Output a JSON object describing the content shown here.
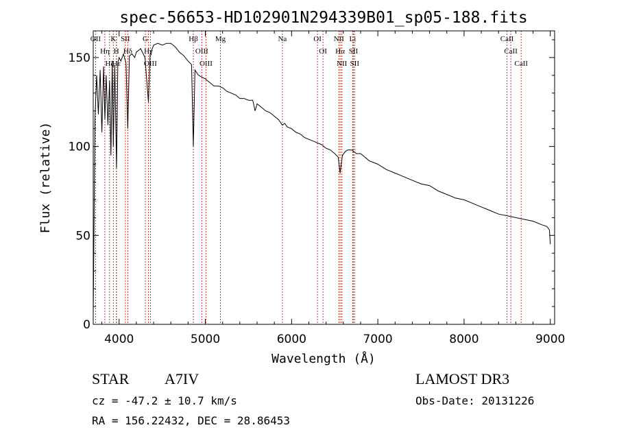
{
  "chart_data": {
    "type": "line",
    "title": "spec-56653-HD102901N294339B01_sp05-188.fits",
    "xlabel": "Wavelength (Å)",
    "ylabel": "Flux (relative)",
    "xlim": [
      3700,
      9050
    ],
    "ylim": [
      0,
      165
    ],
    "xticks": [
      4000,
      5000,
      6000,
      7000,
      8000,
      9000
    ],
    "xtick_labels": [
      "4000",
      "5000",
      "6000",
      "7000",
      "8000",
      "9000"
    ],
    "yticks": [
      0,
      50,
      100,
      150
    ],
    "ytick_labels": [
      "0",
      "50",
      "100",
      "150"
    ],
    "series": [
      {
        "name": "spectrum",
        "x": [
          3700,
          3720,
          3740,
          3760,
          3780,
          3800,
          3820,
          3835,
          3850,
          3870,
          3889,
          3905,
          3920,
          3933,
          3950,
          3970,
          3985,
          4000,
          4020,
          4050,
          4080,
          4101,
          4120,
          4150,
          4180,
          4200,
          4250,
          4300,
          4340,
          4360,
          4400,
          4450,
          4500,
          4550,
          4600,
          4650,
          4700,
          4750,
          4800,
          4840,
          4861,
          4880,
          4920,
          4960,
          5000,
          5050,
          5100,
          5150,
          5200,
          5250,
          5300,
          5350,
          5400,
          5450,
          5500,
          5550,
          5577,
          5600,
          5650,
          5700,
          5750,
          5800,
          5850,
          5893,
          5920,
          5950,
          6000,
          6050,
          6100,
          6150,
          6200,
          6250,
          6300,
          6350,
          6400,
          6450,
          6500,
          6540,
          6563,
          6590,
          6620,
          6650,
          6700,
          6750,
          6800,
          6850,
          6900,
          6950,
          7000,
          7100,
          7200,
          7300,
          7400,
          7500,
          7600,
          7700,
          7800,
          7900,
          8000,
          8100,
          8200,
          8300,
          8400,
          8500,
          8600,
          8700,
          8800,
          8900,
          8960,
          8990,
          9000
        ],
        "y": [
          5,
          115,
          140,
          118,
          143,
          108,
          145,
          115,
          140,
          112,
          137,
          95,
          148,
          100,
          146,
          88,
          147,
          150,
          148,
          152,
          147,
          110,
          151,
          152,
          150,
          153,
          155,
          150,
          125,
          152,
          157,
          158,
          157,
          158,
          158,
          156,
          153,
          151,
          148,
          146,
          100,
          143,
          140,
          139,
          138,
          136,
          134,
          134,
          133,
          131,
          130,
          129,
          127,
          127,
          126,
          126,
          120,
          124,
          122,
          120,
          119,
          117,
          115,
          112,
          113,
          111,
          110,
          108,
          107,
          105,
          104,
          103,
          102,
          101,
          99,
          98,
          96,
          94,
          85,
          95,
          97,
          98,
          98,
          96,
          96,
          94,
          92,
          91,
          90,
          87,
          85,
          83,
          81,
          79,
          78,
          75,
          73,
          71,
          70,
          68,
          66,
          64,
          62,
          61,
          60,
          59,
          58,
          56,
          55,
          53,
          45
        ]
      }
    ],
    "lines": [
      {
        "label": "Hε",
        "x": 3970
      },
      {
        "label": "K",
        "x": 3933
      },
      {
        "label": "Hδ",
        "x": 4101
      },
      {
        "label": "OII",
        "x": 3727
      },
      {
        "label": "Hη",
        "x": 3835
      },
      {
        "label": "Hζ",
        "x": 3889
      },
      {
        "label": "SII",
        "x": 4072
      },
      {
        "label": "H",
        "x": 3968
      },
      {
        "label": "G",
        "x": 4304
      },
      {
        "label": "Hγ",
        "x": 4340
      },
      {
        "label": "OIII",
        "x": 4363
      },
      {
        "label": "Hβ",
        "x": 4861
      },
      {
        "label": "OIII",
        "x": 4959
      },
      {
        "label": "OIII",
        "x": 5007
      },
      {
        "label": "Mg",
        "x": 5175
      },
      {
        "label": "Na",
        "x": 5893
      },
      {
        "label": "OI",
        "x": 6300
      },
      {
        "label": "OI",
        "x": 6364
      },
      {
        "label": "NII",
        "x": 6548
      },
      {
        "label": "Hα",
        "x": 6563
      },
      {
        "label": "NII",
        "x": 6583
      },
      {
        "label": "Li",
        "x": 6708
      },
      {
        "label": "SII",
        "x": 6717
      },
      {
        "label": "SII",
        "x": 6731
      },
      {
        "label": "CaII",
        "x": 8498
      },
      {
        "label": "CaII",
        "x": 8542
      },
      {
        "label": "CaII",
        "x": 8662
      }
    ]
  },
  "info": {
    "object_type": "STAR",
    "subclass": "A7IV",
    "survey": "LAMOST DR3",
    "cz": "cz = -47.2 ± 10.7 km/s",
    "obs_date": "Obs-Date: 20131226",
    "coords": "RA = 156.22432, DEC =  28.86453"
  },
  "colors": {
    "axis": "#000000",
    "spectrum": "#000000",
    "line_marker": "#c0392b"
  }
}
